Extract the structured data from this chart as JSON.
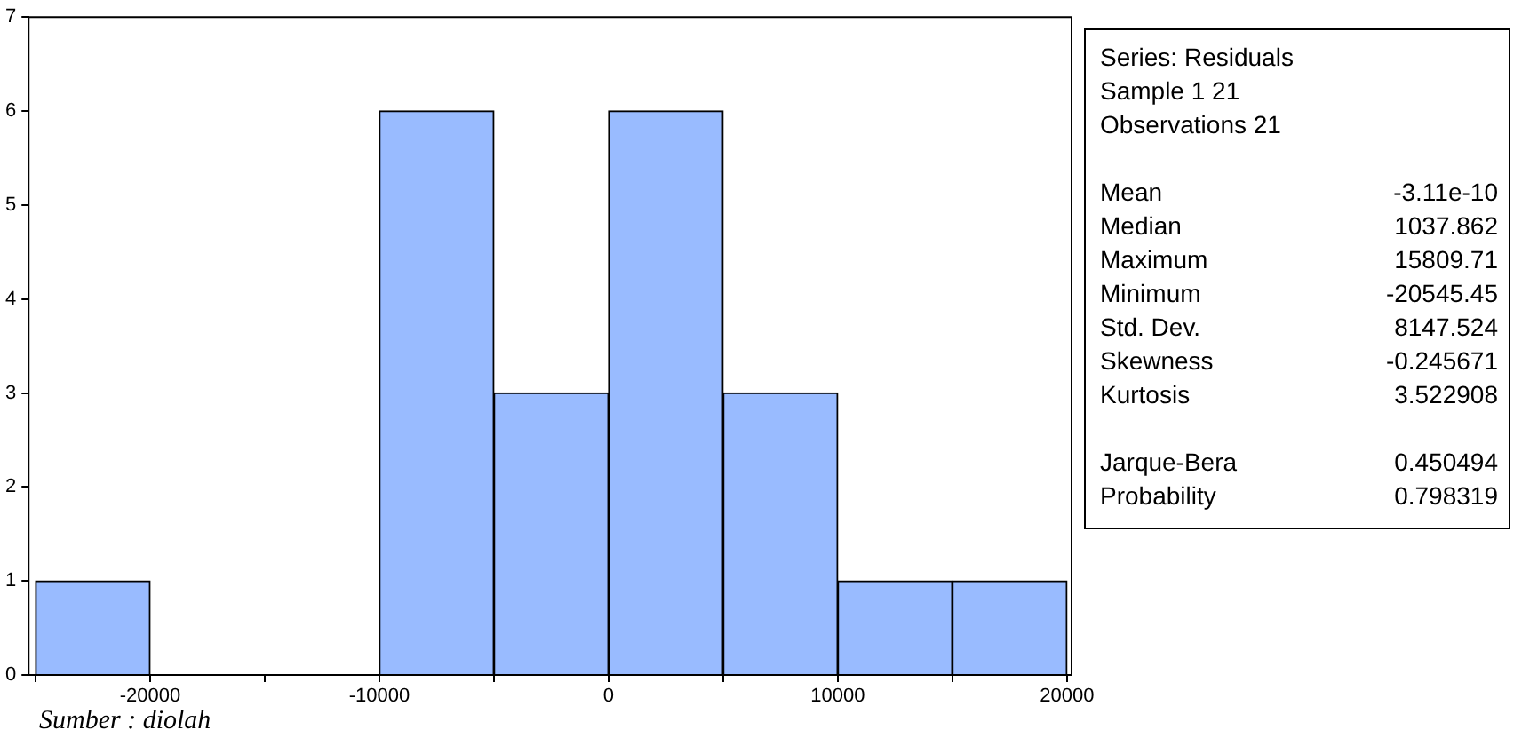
{
  "chart_data": [
    {
      "type": "histogram",
      "bins": [
        -25000,
        -20000,
        -15000,
        -10000,
        -5000,
        0,
        5000,
        10000,
        15000,
        20000
      ],
      "values": [
        1,
        0,
        0,
        6,
        3,
        6,
        3,
        1,
        1
      ],
      "color": "#99bbff",
      "xlim": [
        -25300,
        20200
      ],
      "xticks": [
        {
          "value": -25000,
          "label": null
        },
        -20000,
        {
          "value": -15000,
          "label": null
        },
        -10000,
        {
          "value": -5000,
          "label": null
        },
        0,
        {
          "value": 5000,
          "label": null
        },
        10000,
        {
          "value": 15000,
          "label": null
        },
        20000
      ],
      "ylim": [
        0,
        7
      ],
      "yticks": [
        0,
        1,
        2,
        3,
        4,
        5,
        6,
        7
      ],
      "grid": false,
      "legend": false,
      "annotations": [
        "Sumber : diolah"
      ]
    },
    {
      "type": "other",
      "annotations": [
        "Series: Residuals",
        "Sample 1 21",
        "Observations 21",
        "Mean\t-3.11e-10",
        "Median\t1037.862",
        "Maximum\t15809.71",
        "Minimum\t-20545.45",
        "Std. Dev.\t8147.524",
        "Skewness\t-0.245671",
        "Kurtosis\t3.522908",
        "Jarque-Bera\t0.450494",
        "Probability\t0.798319"
      ]
    }
  ]
}
